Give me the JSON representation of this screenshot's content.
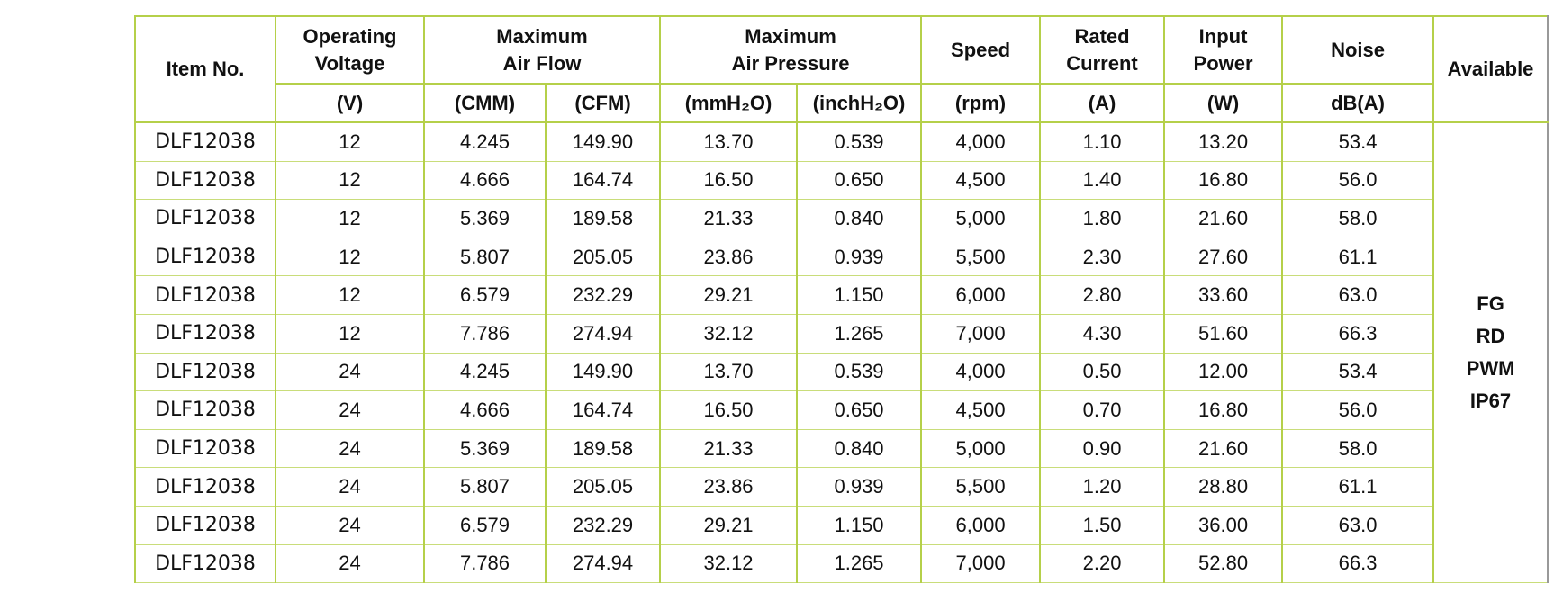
{
  "header": {
    "item": "Item No.",
    "available": "Available",
    "groups": [
      {
        "lines": [
          "Operating",
          "Voltage"
        ],
        "units": [
          "(V)"
        ]
      },
      {
        "lines": [
          "Maximum",
          "Air Flow"
        ],
        "units": [
          "(CMM)",
          "(CFM)"
        ]
      },
      {
        "lines": [
          "Maximum",
          "Air Pressure"
        ],
        "units": [
          "(mmH₂O)",
          "(inchH₂O)"
        ]
      },
      {
        "lines": [
          "Speed"
        ],
        "units": [
          "(rpm)"
        ]
      },
      {
        "lines": [
          "Rated",
          "Current"
        ],
        "units": [
          "(A)"
        ]
      },
      {
        "lines": [
          "Input",
          "Power"
        ],
        "units": [
          "(W)"
        ]
      },
      {
        "lines": [
          "Noise"
        ],
        "units": [
          "dB(A)"
        ]
      }
    ]
  },
  "table": {
    "rows": [
      [
        "DLF12038",
        "12",
        "4.245",
        "149.90",
        "13.70",
        "0.539",
        "4,000",
        "1.10",
        "13.20",
        "53.4"
      ],
      [
        "DLF12038",
        "12",
        "4.666",
        "164.74",
        "16.50",
        "0.650",
        "4,500",
        "1.40",
        "16.80",
        "56.0"
      ],
      [
        "DLF12038",
        "12",
        "5.369",
        "189.58",
        "21.33",
        "0.840",
        "5,000",
        "1.80",
        "21.60",
        "58.0"
      ],
      [
        "DLF12038",
        "12",
        "5.807",
        "205.05",
        "23.86",
        "0.939",
        "5,500",
        "2.30",
        "27.60",
        "61.1"
      ],
      [
        "DLF12038",
        "12",
        "6.579",
        "232.29",
        "29.21",
        "1.150",
        "6,000",
        "2.80",
        "33.60",
        "63.0"
      ],
      [
        "DLF12038",
        "12",
        "7.786",
        "274.94",
        "32.12",
        "1.265",
        "7,000",
        "4.30",
        "51.60",
        "66.3"
      ],
      [
        "DLF12038",
        "24",
        "4.245",
        "149.90",
        "13.70",
        "0.539",
        "4,000",
        "0.50",
        "12.00",
        "53.4"
      ],
      [
        "DLF12038",
        "24",
        "4.666",
        "164.74",
        "16.50",
        "0.650",
        "4,500",
        "0.70",
        "16.80",
        "56.0"
      ],
      [
        "DLF12038",
        "24",
        "5.369",
        "189.58",
        "21.33",
        "0.840",
        "5,000",
        "0.90",
        "21.60",
        "58.0"
      ],
      [
        "DLF12038",
        "24",
        "5.807",
        "205.05",
        "23.86",
        "0.939",
        "5,500",
        "1.20",
        "28.80",
        "61.1"
      ],
      [
        "DLF12038",
        "24",
        "6.579",
        "232.29",
        "29.21",
        "1.150",
        "6,000",
        "1.50",
        "36.00",
        "63.0"
      ],
      [
        "DLF12038",
        "24",
        "7.786",
        "274.94",
        "32.12",
        "1.265",
        "7,000",
        "2.20",
        "52.80",
        "66.3"
      ]
    ],
    "available": [
      "FG",
      "RD",
      "PWM",
      "IP67"
    ]
  }
}
